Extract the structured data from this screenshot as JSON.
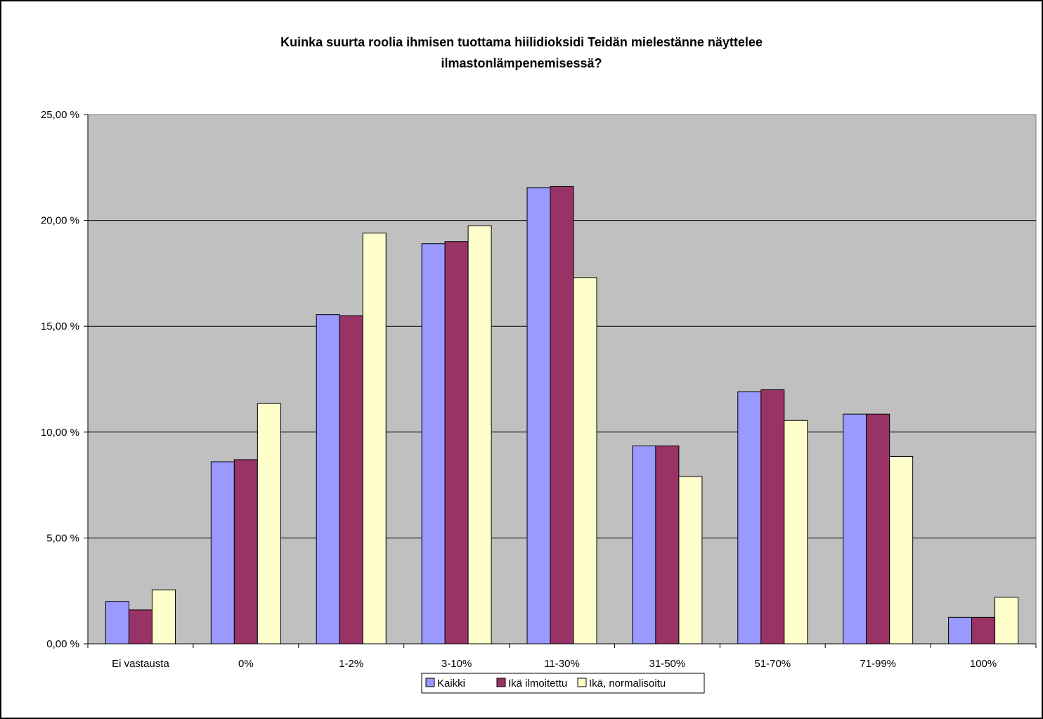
{
  "chart_data": {
    "type": "bar",
    "title_lines": [
      "Kuinka suurta roolia ihmisen tuottama hiilidioksidi Teidän mielestänne näyttelee",
      "ilmastonlämpenemisessä?"
    ],
    "categories": [
      "Ei vastausta",
      "0%",
      "1-2%",
      "3-10%",
      "11-30%",
      "31-50%",
      "51-70%",
      "71-99%",
      "100%"
    ],
    "series": [
      {
        "name": "Kaikki",
        "color": "#9999ff",
        "values": [
          2.0,
          8.6,
          15.55,
          18.9,
          21.55,
          9.35,
          11.9,
          10.85,
          1.25
        ]
      },
      {
        "name": "Ikä ilmoitettu",
        "color": "#993366",
        "values": [
          1.6,
          8.7,
          15.5,
          19.0,
          21.6,
          9.35,
          12.0,
          10.85,
          1.25
        ]
      },
      {
        "name": "Ikä, normalisoitu",
        "color": "#ffffcc",
        "values": [
          2.55,
          11.35,
          19.4,
          19.75,
          17.3,
          7.9,
          10.55,
          8.85,
          2.2
        ]
      }
    ],
    "ylim": [
      0,
      25
    ],
    "yticks": [
      0,
      5,
      10,
      15,
      20,
      25
    ],
    "ytick_labels": [
      "0,00 %",
      "5,00 %",
      "10,00 %",
      "15,00 %",
      "20,00 %",
      "25,00 %"
    ],
    "xlabel": "",
    "ylabel": "",
    "grid": true,
    "plot_background": "#c0c0c0",
    "legend_position": "bottom"
  }
}
